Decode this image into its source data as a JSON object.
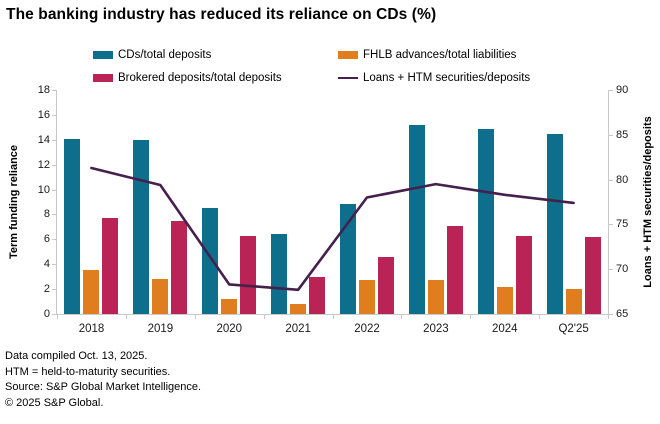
{
  "title": "The banking industry has reduced its reliance on CDs (%)",
  "legend": {
    "items": [
      {
        "label": "CDs/total deposits",
        "color": "#0e6f8d",
        "swatch": "bar"
      },
      {
        "label": "FHLB advances/total liabilities",
        "color": "#e07d1e",
        "swatch": "bar"
      },
      {
        "label": "Brokered deposits/total deposits",
        "color": "#b92355",
        "swatch": "bar"
      },
      {
        "label": "Loans + HTM securities/deposits",
        "color": "#45204d",
        "swatch": "line"
      }
    ]
  },
  "chart_data": {
    "type": "combo-bar-line",
    "categories": [
      "2018",
      "2019",
      "2020",
      "2021",
      "2022",
      "2023",
      "2024",
      "Q2'25"
    ],
    "series": [
      {
        "name": "CDs/total deposits",
        "type": "bar",
        "axis": "left",
        "color": "#0e6f8d",
        "values": [
          14.1,
          14.0,
          8.5,
          6.4,
          8.8,
          15.2,
          14.9,
          14.5
        ]
      },
      {
        "name": "FHLB advances/total liabilities",
        "type": "bar",
        "axis": "left",
        "color": "#e07d1e",
        "values": [
          3.5,
          2.8,
          1.2,
          0.8,
          2.7,
          2.7,
          2.2,
          2.0
        ]
      },
      {
        "name": "Brokered deposits/total deposits",
        "type": "bar",
        "axis": "left",
        "color": "#b92355",
        "values": [
          7.7,
          7.5,
          6.3,
          3.0,
          4.6,
          7.1,
          6.3,
          6.2
        ]
      },
      {
        "name": "Loans + HTM securities/deposits",
        "type": "line",
        "axis": "right",
        "color": "#45204d",
        "values": [
          81.3,
          79.4,
          68.3,
          67.7,
          78.0,
          79.5,
          78.3,
          77.4
        ]
      }
    ],
    "left_axis": {
      "label": "Term funding reliance",
      "min": 0,
      "max": 18,
      "ticks": [
        0,
        2,
        4,
        6,
        8,
        10,
        12,
        14,
        16,
        18
      ]
    },
    "right_axis": {
      "label": "Loans + HTM securities/deposits",
      "min": 65,
      "max": 90,
      "ticks": [
        65,
        70,
        75,
        80,
        85,
        90
      ]
    },
    "grid": false,
    "legend_position": "top"
  },
  "footnotes": [
    "Data compiled Oct. 13, 2025.",
    "HTM = held-to-maturity securities.",
    "Source: S&P Global Market Intelligence.",
    "© 2025 S&P Global."
  ]
}
